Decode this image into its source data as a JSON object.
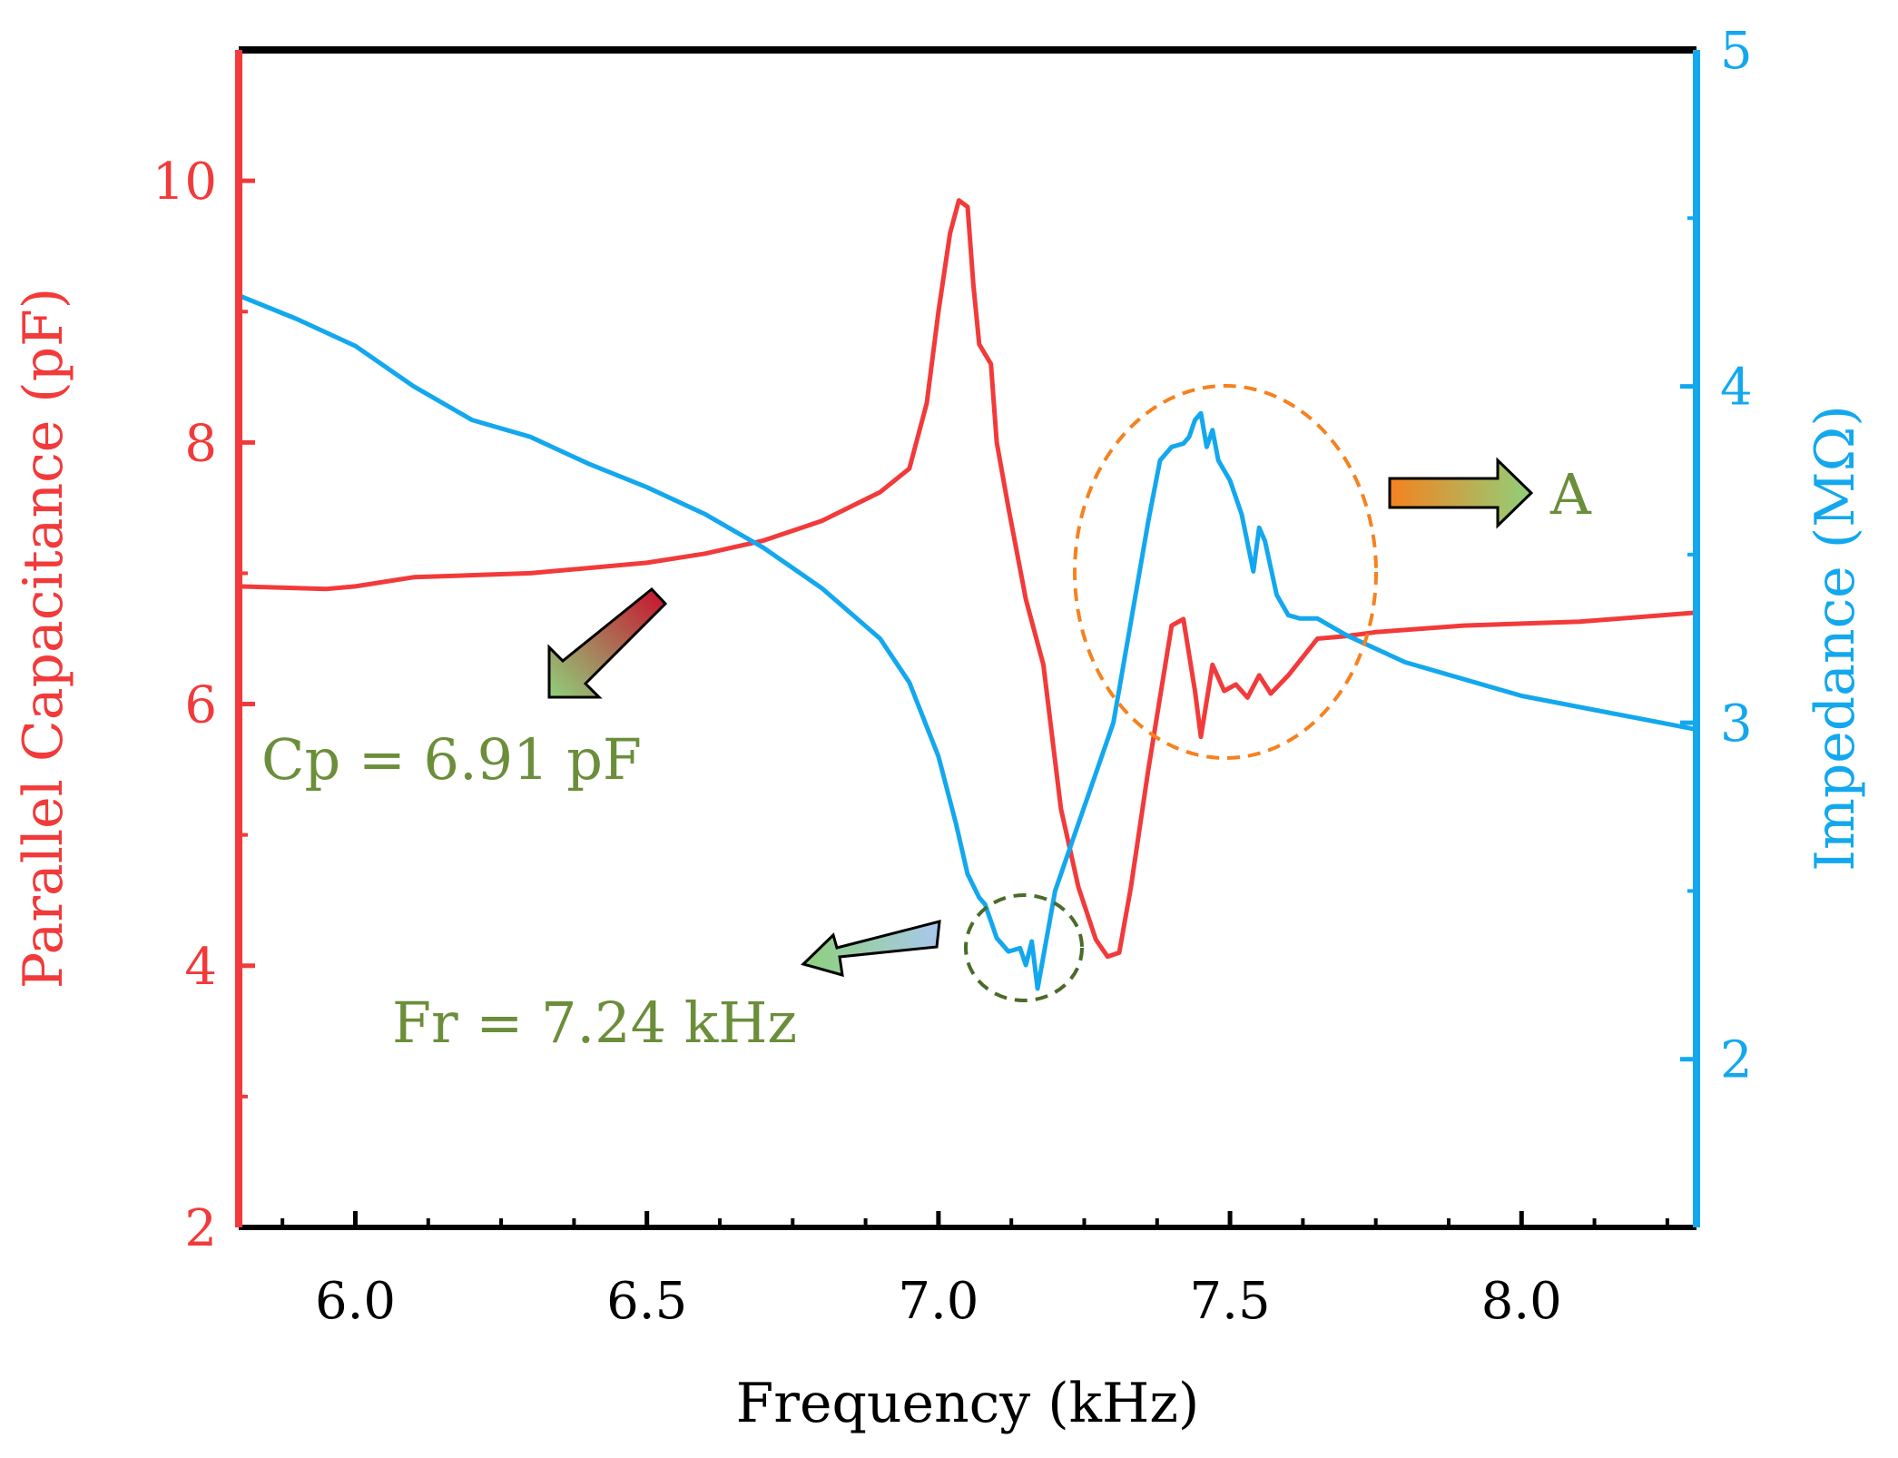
{
  "colors": {
    "capacitance": "#f23a3a",
    "impedance": "#13a8ee",
    "frame": "#000000",
    "annotation_text": "#6b8e3a",
    "circle_A": "#f5821f",
    "circle_fr": "#4a6b2a"
  },
  "chart_data": {
    "type": "line",
    "title": "",
    "xlabel": "Frequency (kHz)",
    "ylabel_left": "Parallel Capacitance (pF)",
    "ylabel_right": "Impedance (MΩ)",
    "xlim": [
      5.8,
      8.3
    ],
    "ylim_left": [
      2,
      11
    ],
    "ylim_right": [
      1.5,
      5
    ],
    "x_ticks": [
      {
        "value": 6.0,
        "label": "6.0"
      },
      {
        "value": 6.5,
        "label": "6.5"
      },
      {
        "value": 7.0,
        "label": "7.0"
      },
      {
        "value": 7.5,
        "label": "7.5"
      },
      {
        "value": 8.0,
        "label": "8.0"
      }
    ],
    "y_left_ticks": [
      {
        "value": 2,
        "label": "2"
      },
      {
        "value": 4,
        "label": "4"
      },
      {
        "value": 6,
        "label": "6"
      },
      {
        "value": 8,
        "label": "8"
      },
      {
        "value": 10,
        "label": "10"
      }
    ],
    "y_right_ticks": [
      {
        "value": 2,
        "label": "2"
      },
      {
        "value": 3,
        "label": "3"
      },
      {
        "value": 4,
        "label": "4"
      },
      {
        "value": 5,
        "label": "5"
      }
    ],
    "grid": false,
    "series": [
      {
        "axis": "left",
        "x": [
          5.8,
          5.95,
          6.0,
          6.1,
          6.3,
          6.5,
          6.6,
          6.7,
          6.8,
          6.9,
          6.95,
          6.98,
          7.0,
          7.02,
          7.035,
          7.05,
          7.06,
          7.07,
          7.09,
          7.1,
          7.12,
          7.15,
          7.18,
          7.21,
          7.24,
          7.27,
          7.29,
          7.31,
          7.33,
          7.36,
          7.4,
          7.42,
          7.44,
          7.45,
          7.47,
          7.49,
          7.51,
          7.53,
          7.55,
          7.57,
          7.6,
          7.65,
          7.7,
          7.75,
          7.9,
          8.1,
          8.3
        ],
        "values": [
          6.9,
          6.88,
          6.9,
          6.97,
          7.0,
          7.08,
          7.15,
          7.25,
          7.4,
          7.62,
          7.8,
          8.3,
          9.0,
          9.6,
          9.85,
          9.8,
          9.2,
          8.75,
          8.6,
          8.0,
          7.5,
          6.8,
          6.3,
          5.2,
          4.6,
          4.2,
          4.07,
          4.1,
          4.6,
          5.5,
          6.6,
          6.65,
          6.1,
          5.75,
          6.3,
          6.1,
          6.15,
          6.05,
          6.22,
          6.08,
          6.22,
          6.5,
          6.52,
          6.55,
          6.6,
          6.63,
          6.7
        ]
      },
      {
        "axis": "right",
        "x": [
          5.8,
          5.9,
          6.0,
          6.1,
          6.2,
          6.3,
          6.4,
          6.5,
          6.6,
          6.7,
          6.8,
          6.9,
          6.95,
          7.0,
          7.03,
          7.05,
          7.07,
          7.08,
          7.1,
          7.12,
          7.14,
          7.15,
          7.16,
          7.17,
          7.2,
          7.23,
          7.26,
          7.3,
          7.33,
          7.36,
          7.38,
          7.4,
          7.42,
          7.43,
          7.44,
          7.45,
          7.46,
          7.47,
          7.48,
          7.5,
          7.52,
          7.54,
          7.55,
          7.56,
          7.58,
          7.6,
          7.62,
          7.65,
          7.7,
          7.8,
          8.0,
          8.3
        ],
        "values": [
          4.27,
          4.2,
          4.12,
          4.0,
          3.9,
          3.85,
          3.77,
          3.7,
          3.62,
          3.52,
          3.4,
          3.25,
          3.12,
          2.9,
          2.7,
          2.55,
          2.48,
          2.46,
          2.36,
          2.32,
          2.33,
          2.28,
          2.35,
          2.21,
          2.5,
          2.65,
          2.8,
          3.0,
          3.3,
          3.6,
          3.78,
          3.82,
          3.83,
          3.85,
          3.9,
          3.92,
          3.82,
          3.87,
          3.78,
          3.72,
          3.62,
          3.45,
          3.58,
          3.54,
          3.38,
          3.32,
          3.31,
          3.31,
          3.26,
          3.18,
          3.08,
          2.98
        ]
      }
    ],
    "annotations": [
      {
        "id": "cp",
        "label": "Cp = 6.91 pF"
      },
      {
        "id": "fr",
        "label": "Fr = 7.24 kHz"
      },
      {
        "id": "a",
        "label": "A"
      }
    ]
  }
}
